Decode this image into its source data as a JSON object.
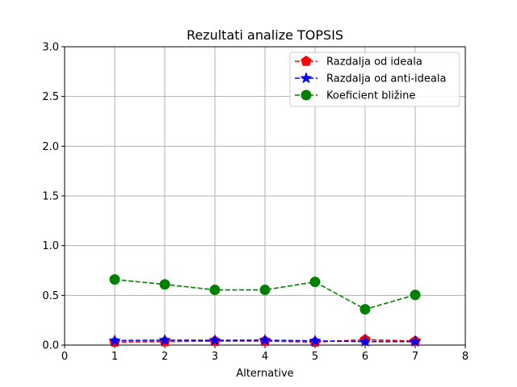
{
  "chart_data": {
    "type": "line",
    "title": "Rezultati analize TOPSIS",
    "xlabel": "Alternative",
    "ylabel": "",
    "xlim": [
      0,
      8
    ],
    "ylim": [
      0,
      3.0
    ],
    "xticks": [
      "0",
      "1",
      "2",
      "3",
      "4",
      "5",
      "6",
      "7",
      "8"
    ],
    "yticks": [
      "0.0",
      "0.5",
      "1.0",
      "1.5",
      "2.0",
      "2.5",
      "3.0"
    ],
    "grid": true,
    "legend_position": "top-right",
    "x": [
      1,
      2,
      3,
      4,
      5,
      6,
      7
    ],
    "series": [
      {
        "name": "Razdalja od ideala",
        "color": "#ff0000",
        "marker": "pentagon",
        "linestyle": "dashed",
        "values": [
          0.03,
          0.035,
          0.04,
          0.04,
          0.03,
          0.055,
          0.04
        ]
      },
      {
        "name": "Razdalja od anti-ideala",
        "color": "#0000ff",
        "marker": "star",
        "linestyle": "dashed",
        "values": [
          0.045,
          0.05,
          0.048,
          0.05,
          0.042,
          0.035,
          0.035
        ]
      },
      {
        "name": "Koeficient bližine",
        "color": "#008000",
        "marker": "circle",
        "linestyle": "dashed",
        "values": [
          0.66,
          0.61,
          0.555,
          0.555,
          0.635,
          0.36,
          0.505
        ]
      }
    ]
  }
}
